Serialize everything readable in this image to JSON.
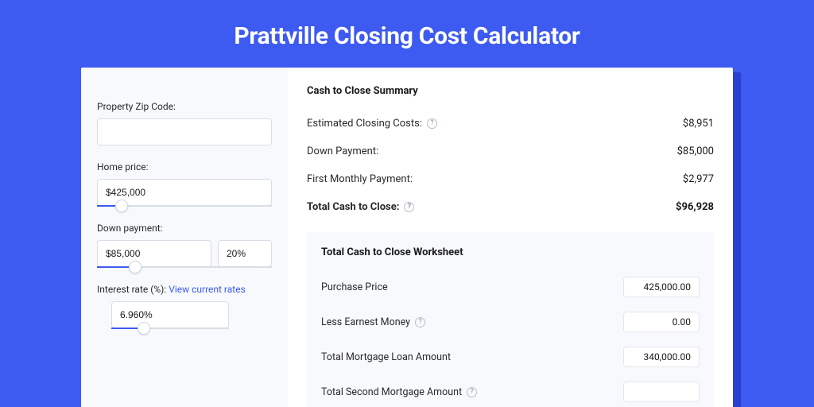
{
  "colors": {
    "page_bg": "#3d5af1",
    "shadow_card": "#2b3fd1",
    "card_bg": "#ffffff",
    "panel_bg": "#f7f9fc",
    "border": "#d8dde6",
    "text": "#1a1a1a",
    "muted": "#8a92a6",
    "link": "#3d5af1"
  },
  "title": "Prattville Closing Cost Calculator",
  "form": {
    "zip": {
      "label": "Property Zip Code:",
      "value": ""
    },
    "home_price": {
      "label": "Home price:",
      "value": "$425,000",
      "slider_pct": 14
    },
    "down_payment": {
      "label": "Down payment:",
      "value": "$85,000",
      "percent": "20%",
      "slider_pct": 22
    },
    "interest_rate": {
      "label": "Interest rate (%):",
      "link_text": "View current rates",
      "value": "6.960%",
      "slider_pct": 28
    }
  },
  "summary": {
    "title": "Cash to Close Summary",
    "rows": [
      {
        "label": "Estimated Closing Costs:",
        "help": true,
        "value": "$8,951",
        "bold": false
      },
      {
        "label": "Down Payment:",
        "help": false,
        "value": "$85,000",
        "bold": false
      },
      {
        "label": "First Monthly Payment:",
        "help": false,
        "value": "$2,977",
        "bold": false
      },
      {
        "label": "Total Cash to Close:",
        "help": true,
        "value": "$96,928",
        "bold": true
      }
    ]
  },
  "worksheet": {
    "title": "Total Cash to Close Worksheet",
    "rows": [
      {
        "label": "Purchase Price",
        "help": false,
        "value": "425,000.00"
      },
      {
        "label": "Less Earnest Money",
        "help": true,
        "value": "0.00"
      },
      {
        "label": "Total Mortgage Loan Amount",
        "help": false,
        "value": "340,000.00"
      },
      {
        "label": "Total Second Mortgage Amount",
        "help": true,
        "value": ""
      }
    ]
  }
}
